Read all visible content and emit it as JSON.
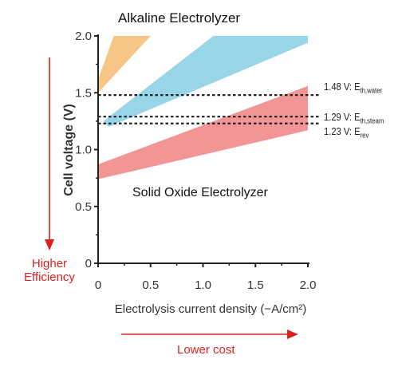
{
  "chart_data": {
    "type": "area",
    "title": "",
    "xlabel": "Electrolysis current density (−A/cm²)",
    "ylabel": "Cell voltage (V)",
    "xlim": [
      0,
      2.0
    ],
    "ylim": [
      0,
      2.0
    ],
    "xticks": [
      "0",
      "0.5",
      "1.0",
      "1.5",
      "2.0"
    ],
    "yticks": [
      "0",
      "0.5",
      "1.0",
      "1.5",
      "2.0"
    ],
    "grid": false,
    "regions": [
      {
        "name": "Alkaline Electrolyzer",
        "color": "#f5c07a",
        "lower": [
          [
            0.0,
            1.5
          ],
          [
            0.5,
            2.0
          ]
        ],
        "upper": [
          [
            0.0,
            1.62
          ],
          [
            0.15,
            2.0
          ]
        ]
      },
      {
        "name": "",
        "color": "#8dd0e3",
        "lower": [
          [
            0.1,
            1.2
          ],
          [
            2.0,
            1.94
          ]
        ],
        "upper": [
          [
            0.05,
            1.25
          ],
          [
            1.1,
            2.0
          ],
          [
            2.0,
            2.0
          ]
        ]
      },
      {
        "name": "Solid Oxide Electrolyzer",
        "color": "#f08a8a",
        "lower": [
          [
            0.0,
            0.74
          ],
          [
            2.0,
            1.17
          ]
        ],
        "upper": [
          [
            0.0,
            0.87
          ],
          [
            2.0,
            1.56
          ]
        ]
      }
    ],
    "reference_lines": [
      {
        "value": 1.48,
        "label_main": "1.48 V: E",
        "label_sub": "th,water"
      },
      {
        "value": 1.29,
        "label_main": "1.29 V: E",
        "label_sub": "th,steam"
      },
      {
        "value": 1.23,
        "label_main": "1.23 V: E",
        "label_sub": "rev"
      }
    ]
  },
  "labels": {
    "alkaline": "Alkaline Electrolyzer",
    "solid_oxide": "Solid Oxide Electrolyzer",
    "higher_efficiency_line1": "Higher",
    "higher_efficiency_line2": "Efficiency",
    "lower_cost": "Lower cost",
    "accent_color": "#e02020"
  }
}
